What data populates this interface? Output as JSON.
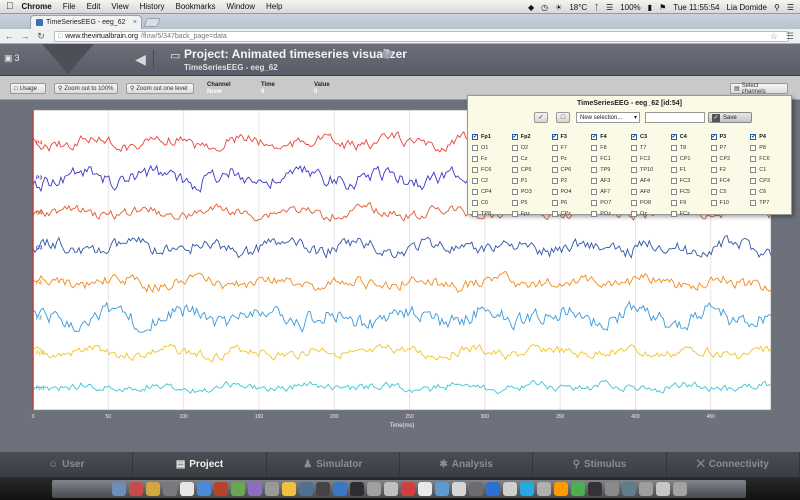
{
  "os_menubar": {
    "app_name": "Chrome",
    "menus": [
      "File",
      "Edit",
      "View",
      "History",
      "Bookmarks",
      "Window",
      "Help"
    ],
    "temperature": "18°C",
    "battery": "100%",
    "clock": "Tue 11:55:54",
    "user": "Lia Domide"
  },
  "browser": {
    "tab_title": "TimeSeriesEEG - eeg_62",
    "url_domain": "www.thevirtualbrain.org",
    "url_path": "/flow/5/347back_page=data"
  },
  "header": {
    "project_count": "3",
    "title": "Project: Animated timeseries visualizer",
    "subtitle": "TimeSeriesEEG - eeg_62",
    "help": "?"
  },
  "toolbar": {
    "usage": "Usage",
    "zoom_100": "Zoom out to 100%",
    "zoom_level": "Zoom out one level",
    "channel_label": "Channel",
    "channel_value": "None",
    "time_label": "Time",
    "time_value": "0",
    "value_label": "Value",
    "value_value": "0",
    "select_channels": "Select channels"
  },
  "channel_selector": {
    "title": "TimeSeriesEEG - eeg_62 [id:54]",
    "dropdown_value": "New selection...",
    "save_label": "Save",
    "channels": [
      {
        "name": "Fp1",
        "checked": true
      },
      {
        "name": "Fp2",
        "checked": true
      },
      {
        "name": "F3",
        "checked": true
      },
      {
        "name": "F4",
        "checked": true
      },
      {
        "name": "C3",
        "checked": true
      },
      {
        "name": "C4",
        "checked": true
      },
      {
        "name": "P3",
        "checked": true
      },
      {
        "name": "P4",
        "checked": true
      },
      {
        "name": "O1",
        "checked": false
      },
      {
        "name": "O2",
        "checked": false
      },
      {
        "name": "F7",
        "checked": false
      },
      {
        "name": "F8",
        "checked": false
      },
      {
        "name": "T7",
        "checked": false
      },
      {
        "name": "T8",
        "checked": false
      },
      {
        "name": "P7",
        "checked": false
      },
      {
        "name": "P8",
        "checked": false
      },
      {
        "name": "Fz",
        "checked": false
      },
      {
        "name": "Cz",
        "checked": false
      },
      {
        "name": "Pz",
        "checked": false
      },
      {
        "name": "FC1",
        "checked": false
      },
      {
        "name": "FC2",
        "checked": false
      },
      {
        "name": "CP1",
        "checked": false
      },
      {
        "name": "CP2",
        "checked": false
      },
      {
        "name": "FC6",
        "checked": false
      },
      {
        "name": "FC6",
        "checked": false
      },
      {
        "name": "CP5",
        "checked": false
      },
      {
        "name": "CP6",
        "checked": false
      },
      {
        "name": "TP9",
        "checked": false
      },
      {
        "name": "TP10",
        "checked": false
      },
      {
        "name": "F1",
        "checked": false
      },
      {
        "name": "F2",
        "checked": false
      },
      {
        "name": "C1",
        "checked": false
      },
      {
        "name": "C2",
        "checked": false
      },
      {
        "name": "P1",
        "checked": false
      },
      {
        "name": "P2",
        "checked": false
      },
      {
        "name": "AF3",
        "checked": false
      },
      {
        "name": "AF4",
        "checked": false
      },
      {
        "name": "FC3",
        "checked": false
      },
      {
        "name": "FC4",
        "checked": false
      },
      {
        "name": "CP3",
        "checked": false
      },
      {
        "name": "CP4",
        "checked": false
      },
      {
        "name": "PO3",
        "checked": false
      },
      {
        "name": "PO4",
        "checked": false
      },
      {
        "name": "AF7",
        "checked": false
      },
      {
        "name": "AF8",
        "checked": false
      },
      {
        "name": "FC5",
        "checked": false
      },
      {
        "name": "C5",
        "checked": false
      },
      {
        "name": "C6",
        "checked": false
      },
      {
        "name": "C6",
        "checked": false
      },
      {
        "name": "P5",
        "checked": false
      },
      {
        "name": "P6",
        "checked": false
      },
      {
        "name": "PO7",
        "checked": false
      },
      {
        "name": "PO8",
        "checked": false
      },
      {
        "name": "F9",
        "checked": false
      },
      {
        "name": "F10",
        "checked": false
      },
      {
        "name": "TP7",
        "checked": false
      },
      {
        "name": "TP8",
        "checked": false
      },
      {
        "name": "Fpz",
        "checked": false
      },
      {
        "name": "CPz",
        "checked": false
      },
      {
        "name": "POz",
        "checked": false
      },
      {
        "name": "Oz",
        "checked": false
      },
      {
        "name": "FCz",
        "checked": false
      }
    ]
  },
  "chart_data": {
    "type": "line",
    "xlabel": "Time(ms)",
    "xlim": [
      0,
      490
    ],
    "x_ticks": [
      0,
      50,
      100,
      150,
      200,
      250,
      300,
      350,
      400,
      450
    ],
    "grid": true,
    "cursor_x": 0,
    "series": [
      {
        "name": "P4",
        "color": "#e8433a",
        "amplitude": 6
      },
      {
        "name": "P3",
        "color": "#3a36c8",
        "amplitude": 8
      },
      {
        "name": "C4",
        "color": "#e05a2a",
        "amplitude": 5
      },
      {
        "name": "C3",
        "color": "#2f56a8",
        "amplitude": 7
      },
      {
        "name": "F4",
        "color": "#f08a1a",
        "amplitude": 6
      },
      {
        "name": "F3",
        "color": "#3a9ad8",
        "amplitude": 9
      },
      {
        "name": "Fp2",
        "color": "#f2c322",
        "amplitude": 5
      },
      {
        "name": "Fp1",
        "color": "#3cc4d8",
        "amplitude": 4
      }
    ]
  },
  "bottom_nav": [
    {
      "label": "User",
      "icon": "user-icon",
      "active": false
    },
    {
      "label": "Project",
      "icon": "project-icon",
      "active": true
    },
    {
      "label": "Simulator",
      "icon": "simulator-icon",
      "active": false
    },
    {
      "label": "Analysis",
      "icon": "analysis-icon",
      "active": false
    },
    {
      "label": "Stimulus",
      "icon": "stimulus-icon",
      "active": false
    },
    {
      "label": "Connectivity",
      "icon": "connectivity-icon",
      "active": false
    }
  ],
  "dock_colors": [
    "#6b8fb8",
    "#c84b4b",
    "#d3a640",
    "#7a7a7a",
    "#e6e6e6",
    "#4a8ad6",
    "#b5432c",
    "#6aa84f",
    "#8e6cc0",
    "#999999",
    "#f0c040",
    "#507090",
    "#444444",
    "#3b78c4",
    "#2d2d2d",
    "#a0a0a0",
    "#c0c0c0",
    "#d04040",
    "#e8e8e8",
    "#5c9ad0",
    "#d6d6d6",
    "#6c6c6c",
    "#2f6fd0",
    "#cfcfcf",
    "#28a8e0",
    "#b0b0b0",
    "#ff9a00",
    "#4caf50",
    "#333333",
    "#8a8a8a",
    "#607d8b",
    "#9e9e9e",
    "#c6c6c6",
    "#a3a3a3"
  ]
}
